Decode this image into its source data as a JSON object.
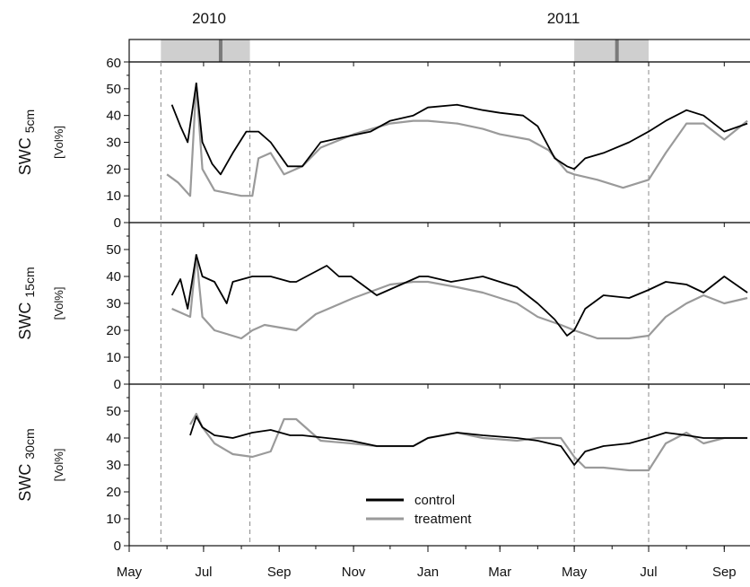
{
  "chart_data": {
    "type": "line",
    "years": [
      "2010",
      "2011"
    ],
    "months": [
      "May",
      "Jul",
      "Sep",
      "Nov",
      "Jan",
      "Mar",
      "May",
      "Jul",
      "Sep"
    ],
    "month_dates": [
      "2010-05-01",
      "2010-07-01",
      "2010-09-01",
      "2010-11-01",
      "2011-01-01",
      "2011-03-01",
      "2011-05-01",
      "2011-07-01",
      "2011-09-01"
    ],
    "x_range": [
      "2010-05-01",
      "2011-09-28"
    ],
    "treatment_periods": [
      {
        "start": "2010-05-27",
        "end": "2010-08-08",
        "peak": "2010-07-15"
      },
      {
        "start": "2011-05-01",
        "end": "2011-07-01",
        "peak": "2011-06-05"
      }
    ],
    "legend": [
      {
        "name": "control",
        "color": "#000000"
      },
      {
        "name": "treatment",
        "color": "#9a9a9a"
      }
    ],
    "top_panel": {
      "ytick_label": "60"
    },
    "panels": [
      {
        "id": "5cm",
        "ylabel_main": "SWC",
        "ylabel_sub": "5cm",
        "unit": "[Vol%]",
        "ylim": [
          0,
          60
        ],
        "yticks": [
          "0",
          "10",
          "20",
          "30",
          "40",
          "50"
        ],
        "series": [
          {
            "name": "control",
            "color": "#000000",
            "points": [
              [
                "2010-06-05",
                44
              ],
              [
                "2010-06-12",
                36
              ],
              [
                "2010-06-18",
                30
              ],
              [
                "2010-06-25",
                52
              ],
              [
                "2010-06-30",
                30
              ],
              [
                "2010-07-08",
                22
              ],
              [
                "2010-07-15",
                18
              ],
              [
                "2010-07-25",
                26
              ],
              [
                "2010-08-05",
                34
              ],
              [
                "2010-08-15",
                34
              ],
              [
                "2010-08-25",
                30
              ],
              [
                "2010-09-08",
                21
              ],
              [
                "2010-09-20",
                21
              ],
              [
                "2010-10-05",
                30
              ],
              [
                "2010-10-25",
                32
              ],
              [
                "2010-11-15",
                34
              ],
              [
                "2010-12-01",
                38
              ],
              [
                "2010-12-20",
                40
              ],
              [
                "2011-01-01",
                43
              ],
              [
                "2011-01-25",
                44
              ],
              [
                "2011-02-15",
                42
              ],
              [
                "2011-03-01",
                41
              ],
              [
                "2011-03-20",
                40
              ],
              [
                "2011-04-01",
                36
              ],
              [
                "2011-04-15",
                24
              ],
              [
                "2011-04-25",
                21
              ],
              [
                "2011-05-01",
                20
              ],
              [
                "2011-05-10",
                24
              ],
              [
                "2011-05-25",
                26
              ],
              [
                "2011-06-15",
                30
              ],
              [
                "2011-07-01",
                34
              ],
              [
                "2011-07-15",
                38
              ],
              [
                "2011-08-01",
                42
              ],
              [
                "2011-08-15",
                40
              ],
              [
                "2011-09-01",
                34
              ],
              [
                "2011-09-20",
                37
              ]
            ]
          },
          {
            "name": "treatment",
            "color": "#9a9a9a",
            "points": [
              [
                "2010-06-01",
                18
              ],
              [
                "2010-06-10",
                15
              ],
              [
                "2010-06-20",
                10
              ],
              [
                "2010-06-25",
                52
              ],
              [
                "2010-06-30",
                20
              ],
              [
                "2010-07-10",
                12
              ],
              [
                "2010-08-01",
                10
              ],
              [
                "2010-08-10",
                10
              ],
              [
                "2010-08-15",
                24
              ],
              [
                "2010-08-25",
                26
              ],
              [
                "2010-09-05",
                18
              ],
              [
                "2010-09-20",
                21
              ],
              [
                "2010-10-05",
                28
              ],
              [
                "2010-11-01",
                33
              ],
              [
                "2010-12-01",
                37
              ],
              [
                "2010-12-20",
                38
              ],
              [
                "2011-01-01",
                38
              ],
              [
                "2011-01-25",
                37
              ],
              [
                "2011-02-15",
                35
              ],
              [
                "2011-03-01",
                33
              ],
              [
                "2011-03-25",
                31
              ],
              [
                "2011-04-10",
                27
              ],
              [
                "2011-04-25",
                19
              ],
              [
                "2011-05-01",
                18
              ],
              [
                "2011-05-20",
                16
              ],
              [
                "2011-06-10",
                13
              ],
              [
                "2011-07-01",
                16
              ],
              [
                "2011-07-15",
                26
              ],
              [
                "2011-08-01",
                37
              ],
              [
                "2011-08-15",
                37
              ],
              [
                "2011-09-01",
                31
              ],
              [
                "2011-09-20",
                38
              ]
            ]
          }
        ]
      },
      {
        "id": "15cm",
        "ylabel_main": "SWC",
        "ylabel_sub": "15cm",
        "unit": "[Vol%]",
        "ylim": [
          0,
          60
        ],
        "yticks": [
          "0",
          "10",
          "20",
          "30",
          "40",
          "50"
        ],
        "series": [
          {
            "name": "control",
            "color": "#000000",
            "points": [
              [
                "2010-06-05",
                33
              ],
              [
                "2010-06-12",
                39
              ],
              [
                "2010-06-18",
                28
              ],
              [
                "2010-06-25",
                48
              ],
              [
                "2010-06-30",
                40
              ],
              [
                "2010-07-10",
                38
              ],
              [
                "2010-07-20",
                30
              ],
              [
                "2010-07-25",
                38
              ],
              [
                "2010-08-10",
                40
              ],
              [
                "2010-08-25",
                40
              ],
              [
                "2010-09-10",
                38
              ],
              [
                "2010-09-15",
                38
              ],
              [
                "2010-10-10",
                44
              ],
              [
                "2010-10-20",
                40
              ],
              [
                "2010-10-30",
                40
              ],
              [
                "2010-11-20",
                33
              ],
              [
                "2010-12-10",
                37
              ],
              [
                "2010-12-25",
                40
              ],
              [
                "2011-01-01",
                40
              ],
              [
                "2011-01-20",
                38
              ],
              [
                "2011-02-15",
                40
              ],
              [
                "2011-03-15",
                36
              ],
              [
                "2011-04-01",
                30
              ],
              [
                "2011-04-15",
                24
              ],
              [
                "2011-04-25",
                18
              ],
              [
                "2011-05-01",
                20
              ],
              [
                "2011-05-10",
                28
              ],
              [
                "2011-05-25",
                33
              ],
              [
                "2011-06-15",
                32
              ],
              [
                "2011-07-01",
                35
              ],
              [
                "2011-07-15",
                38
              ],
              [
                "2011-08-01",
                37
              ],
              [
                "2011-08-15",
                34
              ],
              [
                "2011-09-01",
                40
              ],
              [
                "2011-09-20",
                34
              ]
            ]
          },
          {
            "name": "treatment",
            "color": "#9a9a9a",
            "points": [
              [
                "2010-06-05",
                28
              ],
              [
                "2010-06-20",
                25
              ],
              [
                "2010-06-25",
                48
              ],
              [
                "2010-06-30",
                25
              ],
              [
                "2010-07-10",
                20
              ],
              [
                "2010-08-01",
                17
              ],
              [
                "2010-08-10",
                20
              ],
              [
                "2010-08-20",
                22
              ],
              [
                "2010-09-15",
                20
              ],
              [
                "2010-10-01",
                26
              ],
              [
                "2010-11-01",
                32
              ],
              [
                "2010-12-01",
                37
              ],
              [
                "2010-12-20",
                38
              ],
              [
                "2011-01-01",
                38
              ],
              [
                "2011-01-25",
                36
              ],
              [
                "2011-02-15",
                34
              ],
              [
                "2011-03-15",
                30
              ],
              [
                "2011-04-01",
                25
              ],
              [
                "2011-04-20",
                22
              ],
              [
                "2011-05-01",
                20
              ],
              [
                "2011-05-20",
                17
              ],
              [
                "2011-06-15",
                17
              ],
              [
                "2011-07-01",
                18
              ],
              [
                "2011-07-15",
                25
              ],
              [
                "2011-08-01",
                30
              ],
              [
                "2011-08-15",
                33
              ],
              [
                "2011-09-01",
                30
              ],
              [
                "2011-09-20",
                32
              ]
            ]
          }
        ]
      },
      {
        "id": "30cm",
        "ylabel_main": "SWC",
        "ylabel_sub": "30cm",
        "unit": "[Vol%]",
        "ylim": [
          0,
          60
        ],
        "yticks": [
          "0",
          "10",
          "20",
          "30",
          "40",
          "50"
        ],
        "series": [
          {
            "name": "control",
            "color": "#000000",
            "points": [
              [
                "2010-06-20",
                41
              ],
              [
                "2010-06-25",
                48
              ],
              [
                "2010-06-30",
                44
              ],
              [
                "2010-07-10",
                41
              ],
              [
                "2010-07-25",
                40
              ],
              [
                "2010-08-10",
                42
              ],
              [
                "2010-08-25",
                43
              ],
              [
                "2010-09-10",
                41
              ],
              [
                "2010-09-20",
                41
              ],
              [
                "2010-10-10",
                40
              ],
              [
                "2010-10-30",
                39
              ],
              [
                "2010-11-20",
                37
              ],
              [
                "2010-12-20",
                37
              ],
              [
                "2011-01-01",
                40
              ],
              [
                "2011-01-25",
                42
              ],
              [
                "2011-02-15",
                41
              ],
              [
                "2011-03-15",
                40
              ],
              [
                "2011-04-01",
                39
              ],
              [
                "2011-04-20",
                37
              ],
              [
                "2011-05-01",
                30
              ],
              [
                "2011-05-10",
                35
              ],
              [
                "2011-05-25",
                37
              ],
              [
                "2011-06-15",
                38
              ],
              [
                "2011-07-01",
                40
              ],
              [
                "2011-07-15",
                42
              ],
              [
                "2011-08-01",
                41
              ],
              [
                "2011-08-15",
                40
              ],
              [
                "2011-09-01",
                40
              ],
              [
                "2011-09-20",
                40
              ]
            ]
          },
          {
            "name": "treatment",
            "color": "#9a9a9a",
            "points": [
              [
                "2010-06-20",
                45
              ],
              [
                "2010-06-25",
                49
              ],
              [
                "2010-06-30",
                44
              ],
              [
                "2010-07-10",
                38
              ],
              [
                "2010-07-25",
                34
              ],
              [
                "2010-08-10",
                33
              ],
              [
                "2010-08-25",
                35
              ],
              [
                "2010-09-05",
                47
              ],
              [
                "2010-09-15",
                47
              ],
              [
                "2010-10-05",
                39
              ],
              [
                "2010-10-30",
                38
              ],
              [
                "2010-11-20",
                37
              ],
              [
                "2010-12-20",
                37
              ],
              [
                "2011-01-01",
                40
              ],
              [
                "2011-01-25",
                42
              ],
              [
                "2011-02-15",
                40
              ],
              [
                "2011-03-15",
                39
              ],
              [
                "2011-04-01",
                40
              ],
              [
                "2011-04-20",
                40
              ],
              [
                "2011-05-01",
                33
              ],
              [
                "2011-05-10",
                29
              ],
              [
                "2011-05-25",
                29
              ],
              [
                "2011-06-15",
                28
              ],
              [
                "2011-07-01",
                28
              ],
              [
                "2011-07-15",
                38
              ],
              [
                "2011-08-01",
                42
              ],
              [
                "2011-08-15",
                38
              ],
              [
                "2011-09-01",
                40
              ],
              [
                "2011-09-20",
                40
              ]
            ]
          }
        ]
      }
    ]
  }
}
